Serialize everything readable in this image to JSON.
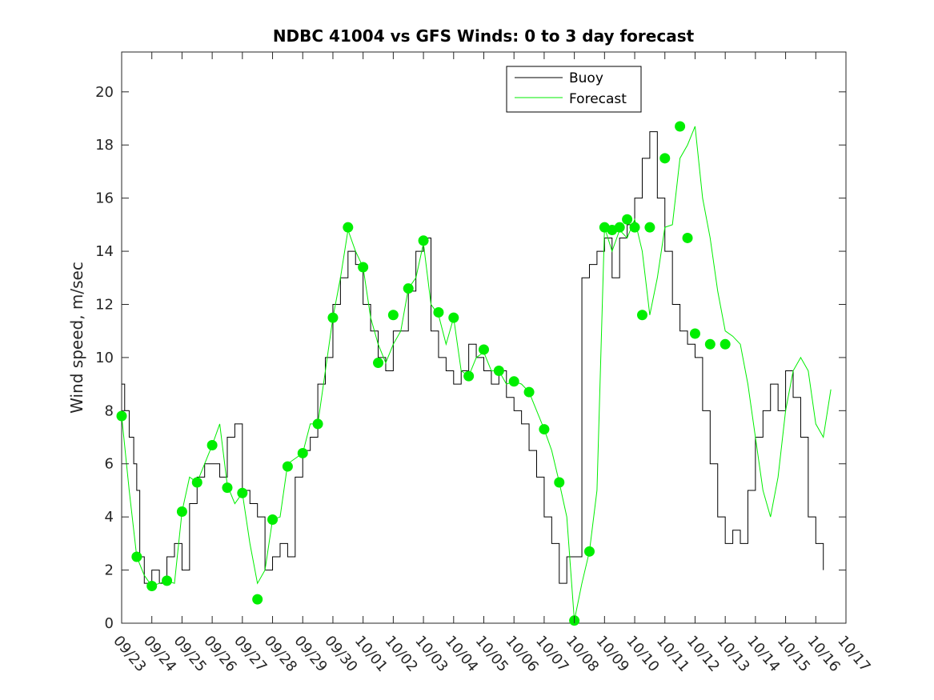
{
  "chart_data": {
    "type": "line",
    "title": "NDBC 41004 vs GFS Winds: 0 to 3 day forecast",
    "xlabel": "",
    "ylabel": "Wind speed, m/sec",
    "ylim": [
      0,
      21.5
    ],
    "yticks": [
      0,
      2,
      4,
      6,
      8,
      10,
      12,
      14,
      16,
      18,
      20
    ],
    "xlim": [
      0,
      24
    ],
    "xtick_labels": [
      "09/23",
      "09/24",
      "09/25",
      "09/26",
      "09/27",
      "09/28",
      "09/29",
      "09/30",
      "10/01",
      "10/02",
      "10/03",
      "10/04",
      "10/05",
      "10/06",
      "10/07",
      "10/08",
      "10/09",
      "10/10",
      "10/11",
      "10/12",
      "10/13",
      "10/14",
      "10/15",
      "10/16",
      "10/17"
    ],
    "legend": {
      "placement": "top-right",
      "entries": [
        "Buoy",
        "Forecast"
      ]
    },
    "colors": {
      "buoy": "#000000",
      "forecast": "#00ee00",
      "markers": "#00ee00"
    },
    "series": [
      {
        "name": "Buoy",
        "x": [
          0,
          0.1,
          0.25,
          0.4,
          0.5,
          0.6,
          0.75,
          1.0,
          1.25,
          1.5,
          1.75,
          2.0,
          2.25,
          2.5,
          2.75,
          3.0,
          3.25,
          3.5,
          3.75,
          4.0,
          4.25,
          4.5,
          4.75,
          5.0,
          5.25,
          5.5,
          5.75,
          6.0,
          6.25,
          6.5,
          6.75,
          7.0,
          7.25,
          7.5,
          7.75,
          8.0,
          8.25,
          8.5,
          8.75,
          9.0,
          9.25,
          9.5,
          9.75,
          10.0,
          10.25,
          10.5,
          10.75,
          11.0,
          11.25,
          11.5,
          11.75,
          12.0,
          12.25,
          12.5,
          12.75,
          13.0,
          13.25,
          13.5,
          13.75,
          14.0,
          14.25,
          14.5,
          14.75,
          15.0,
          15.25,
          15.5,
          15.75,
          16.0,
          16.25,
          16.5,
          16.75,
          17.0,
          17.25,
          17.5,
          17.75,
          18.0,
          18.25,
          18.5,
          18.75,
          19.0,
          19.25,
          19.5,
          19.75,
          20.0,
          20.25,
          20.5,
          20.75,
          21.0,
          21.25,
          21.5,
          21.75,
          22.0,
          22.25,
          22.5,
          22.75,
          23.0,
          23.25
        ],
        "values": [
          9.0,
          8.0,
          7.0,
          6.0,
          5.0,
          2.5,
          1.5,
          2.0,
          1.5,
          2.5,
          3.0,
          2.0,
          4.5,
          5.5,
          6.0,
          6.0,
          5.5,
          7.0,
          7.5,
          5.0,
          4.5,
          4.0,
          2.0,
          2.5,
          3.0,
          2.5,
          5.5,
          6.5,
          7.0,
          9.0,
          10.0,
          12.0,
          13.0,
          14.0,
          13.5,
          12.0,
          11.0,
          10.0,
          9.5,
          11.0,
          11.0,
          12.5,
          14.0,
          14.5,
          11.0,
          10.0,
          9.5,
          9.0,
          9.5,
          10.5,
          10.0,
          9.5,
          9.0,
          9.5,
          8.5,
          8.0,
          7.5,
          6.5,
          5.5,
          4.0,
          3.0,
          1.5,
          2.5,
          2.5,
          13.0,
          13.5,
          14.0,
          14.5,
          13.0,
          14.5,
          15.0,
          16.0,
          17.5,
          18.5,
          16.0,
          14.0,
          12.0,
          11.0,
          10.5,
          10.0,
          8.0,
          6.0,
          4.0,
          3.0,
          3.5,
          3.0,
          5.0,
          7.0,
          8.0,
          9.0,
          8.0,
          9.5,
          8.5,
          7.0,
          4.0,
          3.0,
          2.0
        ]
      },
      {
        "name": "Forecast",
        "x": [
          0,
          0.25,
          0.5,
          0.75,
          1.0,
          1.25,
          1.5,
          1.75,
          2.0,
          2.25,
          2.5,
          2.75,
          3.0,
          3.25,
          3.5,
          3.75,
          4.0,
          4.25,
          4.5,
          4.75,
          5.0,
          5.25,
          5.5,
          5.75,
          6.0,
          6.25,
          6.5,
          6.75,
          7.0,
          7.25,
          7.5,
          7.75,
          8.0,
          8.25,
          8.5,
          8.75,
          9.0,
          9.25,
          9.5,
          9.75,
          10.0,
          10.25,
          10.5,
          10.75,
          11.0,
          11.25,
          11.5,
          11.75,
          12.0,
          12.25,
          12.5,
          12.75,
          13.0,
          13.25,
          13.5,
          13.75,
          14.0,
          14.25,
          14.5,
          14.75,
          15.0,
          15.25,
          15.5,
          15.75,
          16.0,
          16.25,
          16.5,
          16.75,
          17.0,
          17.25,
          17.5,
          17.75,
          18.0,
          18.25,
          18.5,
          18.75,
          19.0,
          19.25,
          19.5,
          19.75,
          20.0,
          20.25,
          20.5,
          20.75,
          21.0,
          21.25,
          21.5,
          21.75,
          22.0,
          22.25,
          22.5,
          22.75,
          23.0,
          23.25,
          23.5
        ],
        "values": [
          7.8,
          5.0,
          2.5,
          1.8,
          1.4,
          1.5,
          1.6,
          1.5,
          4.2,
          5.5,
          5.3,
          6.0,
          6.7,
          7.5,
          5.2,
          4.5,
          4.9,
          3.0,
          1.5,
          2.0,
          3.9,
          4.0,
          6.0,
          6.2,
          6.4,
          7.5,
          7.5,
          9.5,
          11.5,
          13.0,
          14.8,
          14.0,
          13.4,
          11.5,
          10.5,
          9.8,
          10.5,
          11.0,
          12.6,
          13.0,
          14.3,
          12.0,
          11.6,
          10.5,
          11.5,
          9.5,
          9.3,
          10.0,
          10.2,
          9.5,
          9.5,
          9.0,
          9.1,
          9.0,
          8.7,
          8.0,
          7.3,
          6.5,
          5.3,
          4.0,
          0.1,
          1.5,
          2.7,
          5.0,
          14.9,
          14.0,
          14.8,
          14.5,
          15.2,
          14.0,
          11.6,
          13.0,
          14.9,
          15.0,
          17.5,
          18.0,
          18.7,
          16.0,
          14.5,
          12.5,
          11.0,
          10.8,
          10.5,
          9.0,
          7.0,
          5.0,
          4.0,
          5.5,
          8.0,
          9.5,
          10.0,
          9.5,
          7.5,
          7.0,
          8.8
        ]
      },
      {
        "name": "",
        "type": "scatter",
        "x": [
          0,
          0.5,
          1.0,
          1.5,
          2.0,
          2.5,
          3.0,
          3.5,
          4.0,
          4.5,
          5.0,
          5.5,
          6.0,
          6.5,
          7.0,
          7.5,
          8.0,
          8.5,
          9.0,
          9.5,
          10.0,
          10.5,
          11.0,
          11.5,
          12.0,
          12.5,
          13.0,
          13.5,
          14.0,
          14.5,
          15.0,
          15.5,
          16.0,
          16.25,
          16.5,
          16.75,
          17.0,
          17.25,
          17.5,
          18.0,
          18.5,
          18.75,
          19.0,
          19.5,
          20.0
        ],
        "values": [
          7.8,
          2.5,
          1.4,
          1.6,
          4.2,
          5.3,
          6.7,
          5.1,
          4.9,
          0.9,
          3.9,
          5.9,
          6.4,
          7.5,
          11.5,
          14.9,
          13.4,
          9.8,
          11.6,
          12.6,
          14.4,
          11.7,
          11.5,
          9.3,
          10.3,
          9.5,
          9.1,
          8.7,
          7.3,
          5.3,
          0.1,
          2.7,
          14.9,
          14.8,
          14.9,
          15.2,
          14.9,
          11.6,
          14.9,
          17.5,
          18.7,
          14.5,
          10.9,
          10.5,
          10.5
        ]
      }
    ]
  }
}
